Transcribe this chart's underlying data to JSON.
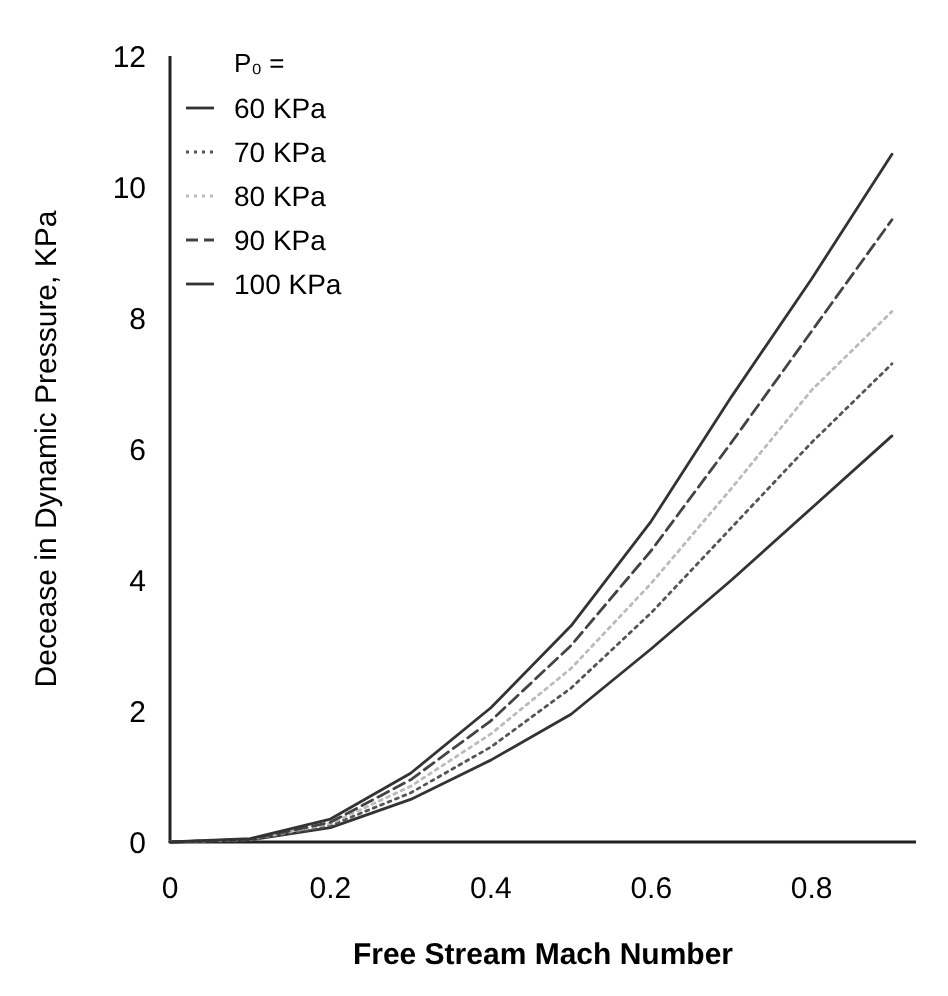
{
  "chart_data": {
    "type": "line",
    "xlabel": "Free Stream Mach Number",
    "ylabel": "Decease in Dynamic Pressure, KPa",
    "legend_title": "P₀ =",
    "legend": "top left",
    "x": [
      0,
      0.1,
      0.2,
      0.3,
      0.4,
      0.5,
      0.6,
      0.7,
      0.8,
      0.9
    ],
    "xlim": [
      0,
      0.93
    ],
    "xticks": [
      0,
      0.2,
      0.4,
      0.6,
      0.8
    ],
    "ylim": [
      0,
      12
    ],
    "yticks": [
      0,
      2,
      4,
      6,
      8,
      10,
      12
    ],
    "grid": false,
    "series": [
      {
        "name": "60 KPa",
        "color": "#333333",
        "line_style": "solid",
        "values": [
          0,
          0.03,
          0.22,
          0.65,
          1.25,
          1.95,
          2.95,
          4.0,
          5.1,
          6.2
        ]
      },
      {
        "name": "70 KPa",
        "color": "#555555",
        "line_style": "dotted",
        "values": [
          0,
          0.03,
          0.25,
          0.75,
          1.45,
          2.35,
          3.5,
          4.8,
          6.1,
          7.3
        ]
      },
      {
        "name": "80 KPa",
        "color": "#bbbbbb",
        "line_style": "dotted",
        "values": [
          0,
          0.04,
          0.28,
          0.85,
          1.65,
          2.65,
          3.95,
          5.4,
          6.9,
          8.1
        ]
      },
      {
        "name": "90 KPa",
        "color": "#444444",
        "line_style": "dashed",
        "values": [
          0,
          0.04,
          0.3,
          0.95,
          1.85,
          3.0,
          4.45,
          6.1,
          7.8,
          9.5
        ]
      },
      {
        "name": "100 KPa",
        "color": "#333333",
        "line_style": "solid",
        "values": [
          0,
          0.05,
          0.35,
          1.05,
          2.05,
          3.3,
          4.9,
          6.8,
          8.6,
          10.5
        ]
      }
    ]
  }
}
